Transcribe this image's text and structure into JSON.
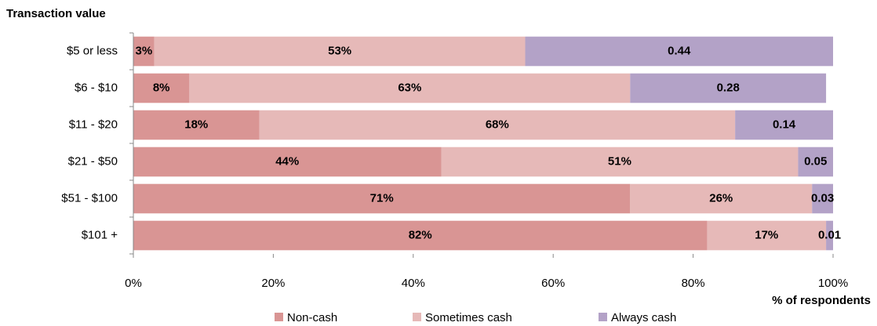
{
  "chart_data": {
    "type": "stacked_barh",
    "y_label": "Transaction value",
    "x_label": "% of respondents",
    "categories": [
      "$5 or less",
      "$6 - $10",
      "$11 - $20",
      "$21 - $50",
      "$51 - $100",
      "$101 +"
    ],
    "series": [
      {
        "name": "Non-cash",
        "color": "#d99594",
        "values": [
          3,
          8,
          18,
          44,
          71,
          82
        ],
        "value_labels": [
          "3%",
          "8%",
          "18%",
          "44%",
          "71%",
          "82%"
        ]
      },
      {
        "name": "Sometimes cash",
        "color": "#e6b9b8",
        "values": [
          53,
          63,
          68,
          51,
          26,
          17
        ],
        "value_labels": [
          "53%",
          "63%",
          "68%",
          "51%",
          "26%",
          "17%"
        ]
      },
      {
        "name": "Always cash",
        "color": "#b3a2c7",
        "values": [
          44,
          28,
          14,
          5,
          3,
          1
        ],
        "value_labels": [
          "0.44",
          "0.28",
          "0.14",
          "0.05",
          "0.03",
          "0.01"
        ]
      }
    ],
    "xlim": [
      0,
      100
    ],
    "xticks": [
      {
        "value": 0,
        "label": "0%"
      },
      {
        "value": 20,
        "label": "20%"
      },
      {
        "value": 40,
        "label": "40%"
      },
      {
        "value": 60,
        "label": "60%"
      },
      {
        "value": 80,
        "label": "80%"
      },
      {
        "value": 100,
        "label": "100%"
      }
    ],
    "legend": "bottom"
  }
}
